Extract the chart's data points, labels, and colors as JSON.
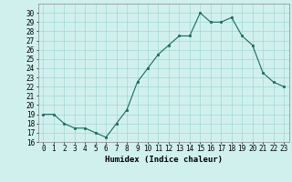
{
  "x": [
    0,
    1,
    2,
    3,
    4,
    5,
    6,
    7,
    8,
    9,
    10,
    11,
    12,
    13,
    14,
    15,
    16,
    17,
    18,
    19,
    20,
    21,
    22,
    23
  ],
  "y": [
    19,
    19,
    18,
    17.5,
    17.5,
    17,
    16.5,
    18,
    19.5,
    22.5,
    24,
    25.5,
    26.5,
    27.5,
    27.5,
    30,
    29,
    29,
    29.5,
    27.5,
    26.5,
    23.5,
    22.5,
    22
  ],
  "line_color": "#1a6b5a",
  "marker": "s",
  "marker_size": 2,
  "bg_color": "#d0f0ee",
  "grid_color": "#a0d8d4",
  "xlabel": "Humidex (Indice chaleur)",
  "ylim": [
    16,
    31
  ],
  "xlim": [
    -0.5,
    23.5
  ],
  "yticks": [
    16,
    17,
    18,
    19,
    20,
    21,
    22,
    23,
    24,
    25,
    26,
    27,
    28,
    29,
    30
  ],
  "xticks": [
    0,
    1,
    2,
    3,
    4,
    5,
    6,
    7,
    8,
    9,
    10,
    11,
    12,
    13,
    14,
    15,
    16,
    17,
    18,
    19,
    20,
    21,
    22,
    23
  ],
  "tick_fontsize": 5.5,
  "xlabel_fontsize": 6.5
}
